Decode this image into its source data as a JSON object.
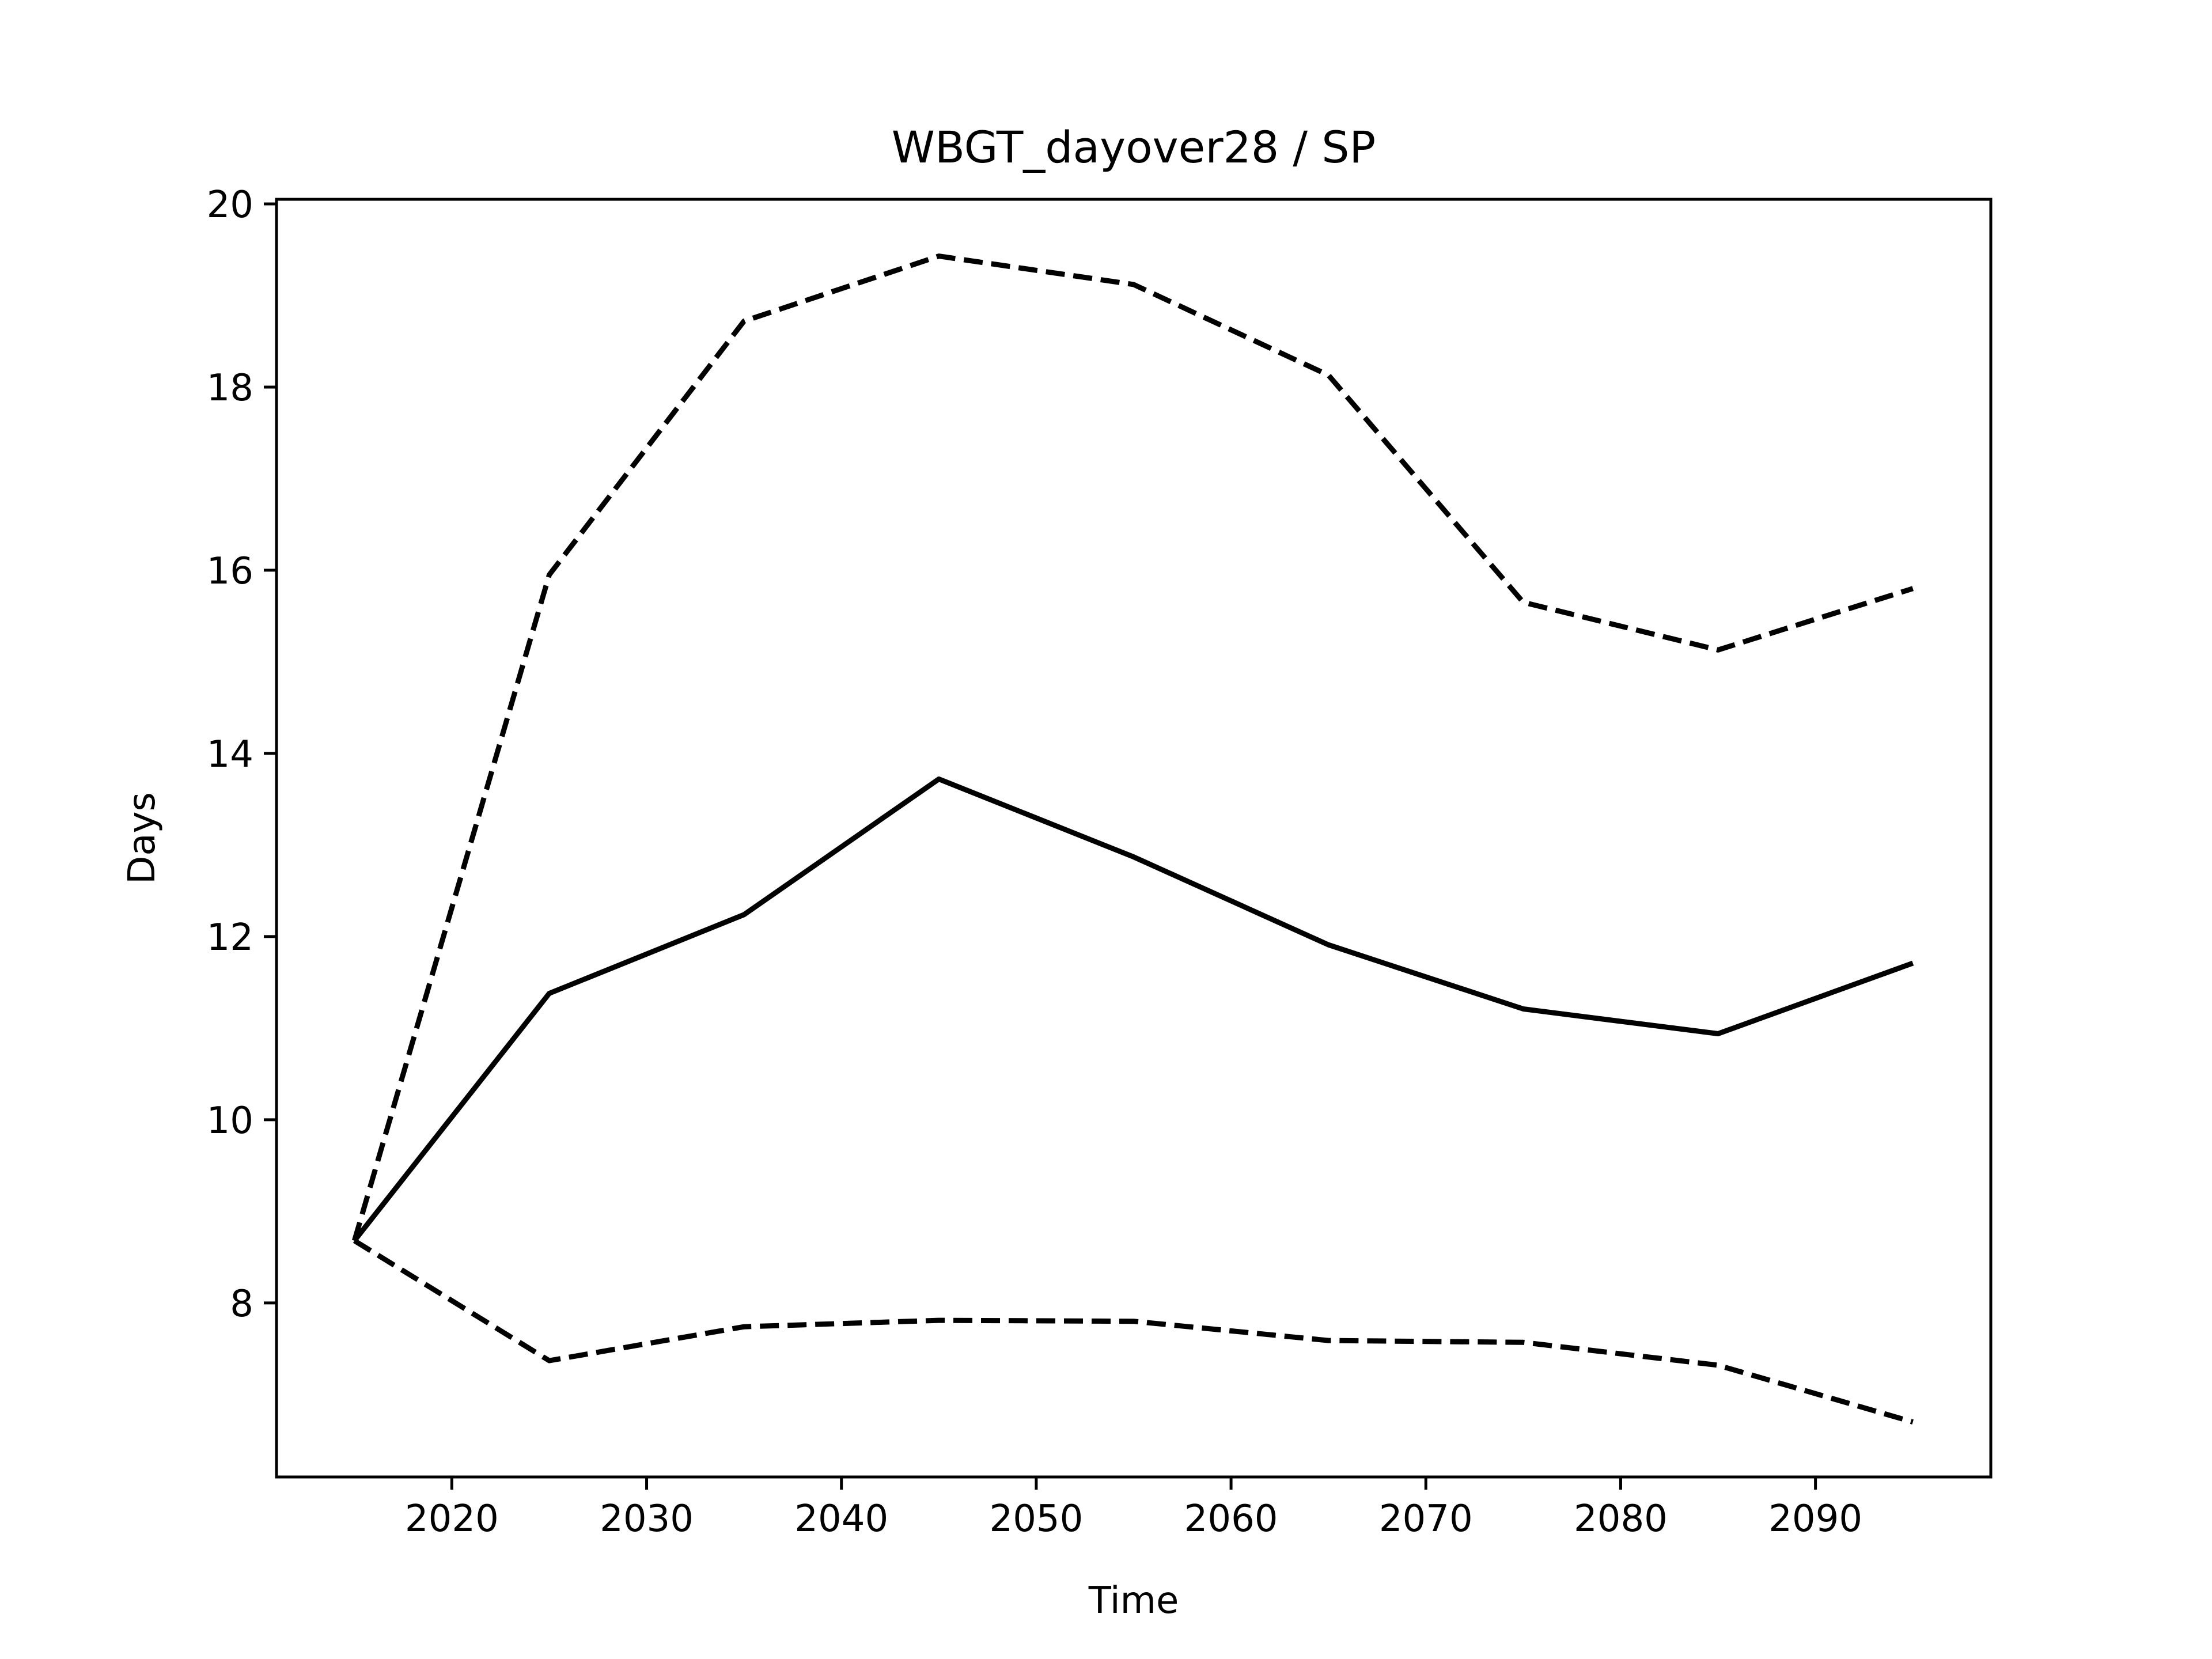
{
  "chart_data": {
    "type": "line",
    "title": "WBGT_dayover28 / SP",
    "xlabel": "Time",
    "ylabel": "Days",
    "xlim": [
      2011,
      2099
    ],
    "ylim": [
      6.1,
      20.05
    ],
    "xticks": [
      2020,
      2030,
      2040,
      2050,
      2060,
      2070,
      2080,
      2090
    ],
    "yticks": [
      8,
      10,
      12,
      14,
      16,
      18,
      20
    ],
    "grid": false,
    "legend": "none",
    "x": [
      2015,
      2025,
      2035,
      2045,
      2055,
      2065,
      2075,
      2085,
      2095
    ],
    "series": [
      {
        "style": "solid",
        "color": "#000000",
        "values": [
          8.68,
          11.38,
          12.24,
          13.72,
          12.87,
          11.91,
          11.21,
          10.94,
          11.71
        ]
      },
      {
        "style": "dashed",
        "color": "#000000",
        "values": [
          8.68,
          15.95,
          18.72,
          19.43,
          19.12,
          18.13,
          15.65,
          15.13,
          15.8
        ]
      },
      {
        "style": "dashed",
        "color": "#000000",
        "values": [
          8.68,
          7.37,
          7.74,
          7.81,
          7.8,
          7.59,
          7.57,
          7.32,
          6.7
        ]
      }
    ]
  }
}
